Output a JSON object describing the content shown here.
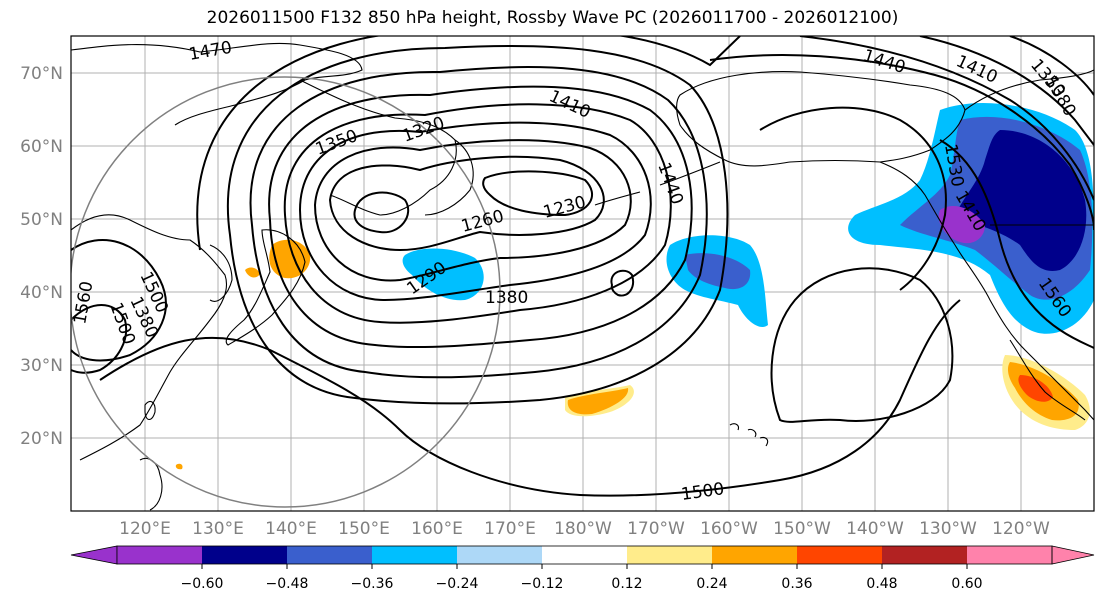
{
  "title": "2026011500 F132 850 hPa height, Rossby Wave PC (2026011700 - 2026012100)",
  "lat_labels": [
    "70°N",
    "60°N",
    "50°N",
    "40°N",
    "30°N",
    "20°N"
  ],
  "lon_labels": [
    "120°E",
    "130°E",
    "140°E",
    "150°E",
    "160°E",
    "170°E",
    "180°W",
    "170°W",
    "160°W",
    "150°W",
    "140°W",
    "130°W",
    "120°W"
  ],
  "contour_labels": [
    "1470",
    "1440",
    "1410",
    "1350",
    "1380",
    "1410",
    "1320",
    "1350",
    "1530",
    "1410",
    "1440",
    "1230",
    "1260",
    "1290",
    "1380",
    "1560",
    "1500",
    "1380",
    "1500",
    "1560",
    "1500"
  ],
  "colorbar": {
    "ticks": [
      "−0.60",
      "−0.48",
      "−0.36",
      "−0.24",
      "−0.12",
      "0.12",
      "0.24",
      "0.36",
      "0.48",
      "0.60"
    ],
    "colors": [
      "#9932cc",
      "#00008b",
      "#3a5fcd",
      "#00bfff",
      "#add8f7",
      "#ffffff",
      "#ffec8b",
      "#ffa500",
      "#ff4500",
      "#b22222",
      "#ff82ab"
    ]
  },
  "palette": {
    "neg_strong": "#9932cc",
    "neg_dark": "#00008b",
    "neg_mid": "#3a5fcd",
    "neg_light": "#00bfff",
    "pos_light": "#ffec8b",
    "pos_mid": "#ffa500",
    "pos_strong": "#ff4500"
  }
}
